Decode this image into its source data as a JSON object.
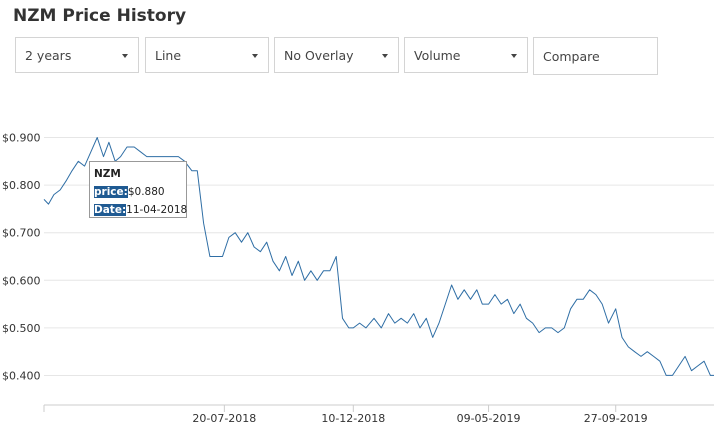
{
  "page": {
    "title": "NZM Price History"
  },
  "controls": {
    "period": {
      "value": "2 years"
    },
    "chart_type": {
      "value": "Line"
    },
    "overlay": {
      "value": "No Overlay"
    },
    "indicator": {
      "value": "Volume"
    },
    "compare": {
      "placeholder": "Compare"
    }
  },
  "tooltip": {
    "symbol": "NZM",
    "price_label": "price:",
    "price_value": "$0.880",
    "date_label": "Date:",
    "date_value": "11-04-2018"
  },
  "chart_data": {
    "type": "line",
    "title": "",
    "xlabel": "",
    "ylabel": "",
    "ylim": [
      0.34,
      0.92
    ],
    "xlim": [
      "2018-01-01",
      "2020-01-14"
    ],
    "grid": true,
    "y_ticks": [
      "$0.400",
      "$0.500",
      "$0.600",
      "$0.700",
      "$0.800",
      "$0.900"
    ],
    "y_tick_values": [
      0.4,
      0.5,
      0.6,
      0.7,
      0.8,
      0.9
    ],
    "x_ticks": [
      "20-07-2018",
      "10-12-2018",
      "09-05-2019",
      "27-09-2019"
    ],
    "x_tick_dates": [
      "2018-07-20",
      "2018-12-10",
      "2019-05-09",
      "2019-09-27"
    ],
    "line_color": "#2f6ea5",
    "series": [
      {
        "x": [
          "2018-01-01",
          "2018-01-06",
          "2018-01-12",
          "2018-01-19",
          "2018-01-26",
          "2018-02-01",
          "2018-02-08",
          "2018-02-15",
          "2018-02-22",
          "2018-03-01",
          "2018-03-08",
          "2018-03-14",
          "2018-03-21",
          "2018-03-27",
          "2018-04-03",
          "2018-04-11",
          "2018-04-18",
          "2018-04-25",
          "2018-05-02",
          "2018-05-09",
          "2018-05-16",
          "2018-05-23",
          "2018-05-30",
          "2018-06-06",
          "2018-06-10",
          "2018-06-14",
          "2018-06-20",
          "2018-06-27",
          "2018-07-04",
          "2018-07-11",
          "2018-07-18",
          "2018-07-25",
          "2018-08-01",
          "2018-08-08",
          "2018-08-15",
          "2018-08-22",
          "2018-08-29",
          "2018-09-05",
          "2018-09-12",
          "2018-09-19",
          "2018-09-26",
          "2018-10-03",
          "2018-10-10",
          "2018-10-17",
          "2018-10-24",
          "2018-10-31",
          "2018-11-07",
          "2018-11-14",
          "2018-11-21",
          "2018-11-28",
          "2018-12-05",
          "2018-12-10",
          "2018-12-17",
          "2018-12-24",
          "2019-01-02",
          "2019-01-10",
          "2019-01-18",
          "2019-01-25",
          "2019-02-01",
          "2019-02-08",
          "2019-02-15",
          "2019-02-22",
          "2019-03-01",
          "2019-03-08",
          "2019-03-15",
          "2019-03-22",
          "2019-03-29",
          "2019-04-05",
          "2019-04-12",
          "2019-04-19",
          "2019-04-26",
          "2019-05-02",
          "2019-05-09",
          "2019-05-16",
          "2019-05-23",
          "2019-05-30",
          "2019-06-06",
          "2019-06-13",
          "2019-06-20",
          "2019-06-27",
          "2019-07-04",
          "2019-07-11",
          "2019-07-18",
          "2019-07-25",
          "2019-08-01",
          "2019-08-08",
          "2019-08-15",
          "2019-08-22",
          "2019-08-29",
          "2019-09-05",
          "2019-09-12",
          "2019-09-19",
          "2019-09-27",
          "2019-10-04",
          "2019-10-11",
          "2019-10-18",
          "2019-10-25",
          "2019-11-01",
          "2019-11-08",
          "2019-11-15",
          "2019-11-22",
          "2019-11-29",
          "2019-12-06",
          "2019-12-13",
          "2019-12-20",
          "2019-12-27",
          "2020-01-03",
          "2020-01-10",
          "2020-01-14"
        ],
        "y": [
          0.77,
          0.76,
          0.78,
          0.79,
          0.81,
          0.83,
          0.85,
          0.84,
          0.87,
          0.9,
          0.86,
          0.89,
          0.85,
          0.86,
          0.88,
          0.88,
          0.87,
          0.86,
          0.86,
          0.86,
          0.86,
          0.86,
          0.86,
          0.85,
          0.84,
          0.83,
          0.83,
          0.72,
          0.65,
          0.65,
          0.65,
          0.69,
          0.7,
          0.68,
          0.7,
          0.67,
          0.66,
          0.68,
          0.64,
          0.62,
          0.65,
          0.61,
          0.64,
          0.6,
          0.62,
          0.6,
          0.62,
          0.62,
          0.65,
          0.52,
          0.5,
          0.5,
          0.51,
          0.5,
          0.52,
          0.5,
          0.53,
          0.51,
          0.52,
          0.51,
          0.53,
          0.5,
          0.52,
          0.48,
          0.51,
          0.55,
          0.59,
          0.56,
          0.58,
          0.56,
          0.58,
          0.55,
          0.55,
          0.57,
          0.55,
          0.56,
          0.53,
          0.55,
          0.52,
          0.51,
          0.49,
          0.5,
          0.5,
          0.49,
          0.5,
          0.54,
          0.56,
          0.56,
          0.58,
          0.57,
          0.55,
          0.51,
          0.54,
          0.48,
          0.46,
          0.45,
          0.44,
          0.45,
          0.44,
          0.43,
          0.4,
          0.4,
          0.42,
          0.44,
          0.41,
          0.42,
          0.43,
          0.4,
          0.4
        ]
      }
    ]
  }
}
